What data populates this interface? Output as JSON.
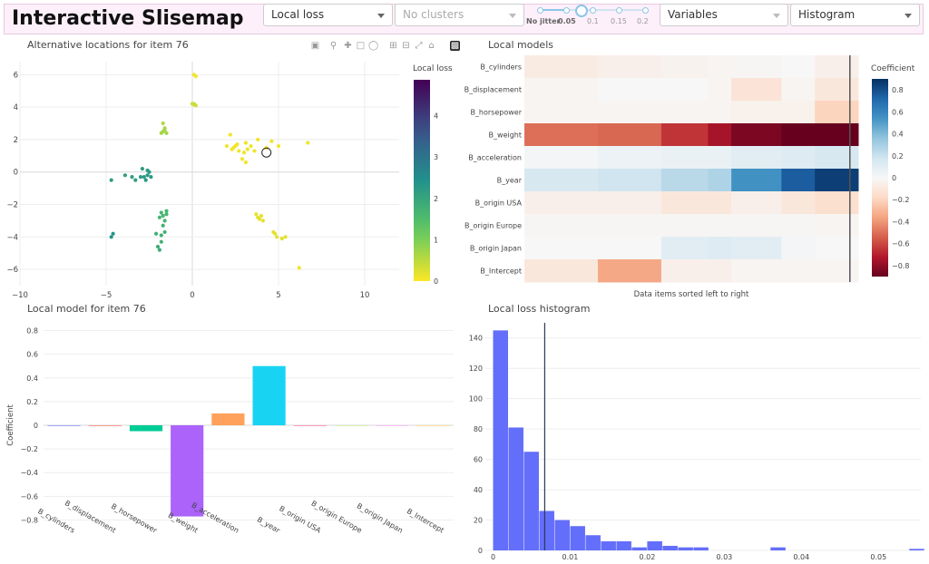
{
  "header": {
    "title": "Interactive Slisemap",
    "loss_select": "Local loss",
    "cluster_select": "No clusters",
    "jitter_marks": [
      "No jitter",
      "0.05",
      "0.1",
      "0.15",
      "0.2"
    ],
    "jitter_value": 0.05,
    "variables_select": "Variables",
    "histogram_select": "Histogram"
  },
  "embedding": {
    "title": "Alternative locations for item 76",
    "colorbar_title": "Local loss",
    "x_ticks": [
      "−10",
      "−5",
      "0",
      "5",
      "10"
    ],
    "y_ticks": [
      "6",
      "4",
      "2",
      "0",
      "−2",
      "−4",
      "−6"
    ],
    "colorbar_ticks": [
      "4",
      "3",
      "2",
      "1",
      "0"
    ],
    "xlim": [
      -10,
      12
    ],
    "ylim": [
      -7,
      6.8
    ],
    "selected": [
      4.3,
      1.2
    ],
    "points": [
      [
        0.2,
        5.9,
        0.1
      ],
      [
        0.1,
        6.0,
        0.1
      ],
      [
        0.1,
        4.2,
        0.4
      ],
      [
        0.2,
        4.1,
        0.4
      ],
      [
        0.0,
        4.2,
        0.4
      ],
      [
        0.1,
        4.15,
        0.4
      ],
      [
        -1.7,
        3.0,
        0.6
      ],
      [
        -1.6,
        2.6,
        0.7
      ],
      [
        -1.7,
        2.5,
        0.7
      ],
      [
        -1.5,
        2.4,
        0.7
      ],
      [
        -1.6,
        2.7,
        0.7
      ],
      [
        -1.8,
        2.4,
        0.7
      ],
      [
        2.2,
        2.3,
        0.1
      ],
      [
        2.5,
        1.6,
        0.1
      ],
      [
        2.4,
        1.5,
        0.1
      ],
      [
        2.7,
        1.3,
        0.1
      ],
      [
        2.3,
        1.4,
        0.1
      ],
      [
        2.6,
        1.7,
        0.1
      ],
      [
        3.1,
        1.8,
        0.1
      ],
      [
        3.0,
        1.2,
        0.1
      ],
      [
        3.2,
        1.4,
        0.1
      ],
      [
        3.6,
        1.3,
        0.1
      ],
      [
        3.8,
        2.0,
        0.1
      ],
      [
        2.9,
        0.8,
        0.1
      ],
      [
        3.1,
        0.6,
        0.1
      ],
      [
        4.3,
        1.5,
        0.1
      ],
      [
        4.6,
        1.9,
        0.1
      ],
      [
        5.0,
        1.6,
        0.1
      ],
      [
        6.7,
        1.8,
        0.1
      ],
      [
        2.0,
        1.6,
        0.1
      ],
      [
        3.4,
        1.6,
        0.1
      ],
      [
        -4.7,
        -0.5,
        2.2
      ],
      [
        -3.9,
        -0.2,
        2.2
      ],
      [
        -3.5,
        -0.3,
        2.2
      ],
      [
        -3.0,
        -0.3,
        2.3
      ],
      [
        -2.6,
        -0.2,
        2.3
      ],
      [
        -2.4,
        -0.3,
        2.3
      ],
      [
        -2.5,
        0.0,
        2.3
      ],
      [
        -2.8,
        -0.3,
        2.3
      ],
      [
        -2.9,
        0.2,
        2.2
      ],
      [
        -2.6,
        0.1,
        2.3
      ],
      [
        -3.3,
        -0.5,
        2.2
      ],
      [
        -2.7,
        -0.5,
        2.3
      ],
      [
        -1.8,
        -2.5,
        1.7
      ],
      [
        -1.7,
        -2.7,
        1.7
      ],
      [
        -1.5,
        -2.4,
        1.7
      ],
      [
        -1.9,
        -2.8,
        1.7
      ],
      [
        -1.6,
        -3.0,
        1.7
      ],
      [
        -1.7,
        -3.3,
        1.8
      ],
      [
        -1.6,
        -3.7,
        1.8
      ],
      [
        -1.8,
        -3.9,
        1.8
      ],
      [
        -1.8,
        -4.3,
        1.8
      ],
      [
        -2.0,
        -4.6,
        1.9
      ],
      [
        -1.9,
        -4.8,
        1.9
      ],
      [
        -2.1,
        -3.8,
        1.8
      ],
      [
        -1.5,
        -2.6,
        1.7
      ],
      [
        -4.6,
        -3.8,
        2.4
      ],
      [
        -4.7,
        -4.0,
        2.4
      ],
      [
        3.9,
        -2.9,
        0.2
      ],
      [
        3.8,
        -2.8,
        0.2
      ],
      [
        4.1,
        -3.0,
        0.2
      ],
      [
        3.7,
        -2.6,
        0.2
      ],
      [
        4.0,
        -2.7,
        0.2
      ],
      [
        4.8,
        -3.8,
        0.2
      ],
      [
        4.9,
        -4.0,
        0.2
      ],
      [
        5.2,
        -4.1,
        0.2
      ],
      [
        5.4,
        -4.0,
        0.2
      ],
      [
        4.7,
        -3.7,
        0.2
      ],
      [
        6.2,
        -5.9,
        0.1
      ]
    ]
  },
  "local_models": {
    "title": "Local models",
    "xlabel": "Data items sorted left to right",
    "colorbar_title": "Coefficient",
    "colorbar_ticks": [
      "0.8",
      "0.6",
      "0.4",
      "0.2",
      "0",
      "−0.2",
      "−0.4",
      "−0.6",
      "−0.8"
    ],
    "rows": [
      "B_cylinders",
      "B_displacement",
      "B_horsepower",
      "B_weight",
      "B_acceleration",
      "B_year",
      "B_origin USA",
      "B_origin Europe",
      "B_origin Japan",
      "B_Intercept"
    ],
    "segment_bounds": [
      0,
      0.22,
      0.41,
      0.55,
      0.62,
      0.77,
      0.87,
      1.0
    ],
    "values": [
      [
        -0.08,
        -0.05,
        -0.03,
        -0.02,
        -0.01,
        -0.0,
        -0.05
      ],
      [
        -0.02,
        -0.0,
        -0.0,
        -0.02,
        -0.12,
        -0.02,
        -0.1
      ],
      [
        -0.02,
        -0.02,
        -0.02,
        -0.02,
        -0.04,
        -0.04,
        -0.2
      ],
      [
        -0.5,
        -0.52,
        -0.65,
        -0.75,
        -0.85,
        -0.92,
        -0.95
      ],
      [
        0.02,
        0.05,
        0.06,
        0.06,
        0.1,
        0.12,
        0.15
      ],
      [
        0.15,
        0.18,
        0.25,
        0.28,
        0.55,
        0.75,
        0.85
      ],
      [
        -0.05,
        -0.05,
        -0.1,
        -0.1,
        -0.05,
        -0.1,
        -0.15
      ],
      [
        -0.01,
        -0.01,
        -0.01,
        -0.01,
        -0.01,
        -0.01,
        -0.02
      ],
      [
        0.0,
        0.0,
        0.1,
        0.12,
        0.1,
        0.02,
        0.0
      ],
      [
        -0.1,
        -0.35,
        -0.05,
        -0.05,
        -0.02,
        -0.02,
        -0.02
      ]
    ],
    "marker_position": 0.975
  },
  "local_model": {
    "title": "Local model for item 76",
    "ylabel": "Coefficient",
    "y_ticks": [
      "0.8",
      "0.6",
      "0.4",
      "0.2",
      "0",
      "−0.2",
      "−0.4",
      "−0.6",
      "−0.8"
    ],
    "categories": [
      "B_cylinders",
      "B_displacement",
      "B_horsepower",
      "B_weight",
      "B_acceleration",
      "B_year",
      "B_origin USA",
      "B_origin Europe",
      "B_origin Japan",
      "B_Intercept"
    ],
    "values": [
      0.0,
      0.0,
      -0.05,
      -0.77,
      0.1,
      0.5,
      -0.005,
      0.0,
      0.0,
      0.0
    ],
    "colors": [
      "#636efa",
      "#ef553b",
      "#00cc96",
      "#ab63fa",
      "#ffa15a",
      "#19d3f3",
      "#ff6692",
      "#b6e880",
      "#ff97ff",
      "#fecb52"
    ],
    "ylim": [
      -0.85,
      0.85
    ]
  },
  "histogram": {
    "title": "Local loss histogram",
    "x_ticks": [
      "0",
      "0.01",
      "0.02",
      "0.03",
      "0.04",
      "0.05"
    ],
    "y_ticks": [
      "140",
      "120",
      "100",
      "80",
      "60",
      "40",
      "20",
      "0"
    ],
    "bin_width": 0.002,
    "counts": [
      145,
      81,
      65,
      26,
      20,
      16,
      10,
      6,
      6,
      2,
      6,
      3,
      2,
      2,
      0,
      0,
      0,
      0,
      2,
      0,
      0,
      0,
      0,
      0,
      0,
      0,
      0,
      1,
      0,
      0,
      0,
      0,
      0,
      0,
      0,
      0,
      0,
      0,
      0,
      2
    ],
    "bar_color": "#636efa",
    "marker": 0.0067,
    "xlim": [
      -0.001,
      0.0555
    ],
    "ylim": [
      0,
      150
    ]
  }
}
